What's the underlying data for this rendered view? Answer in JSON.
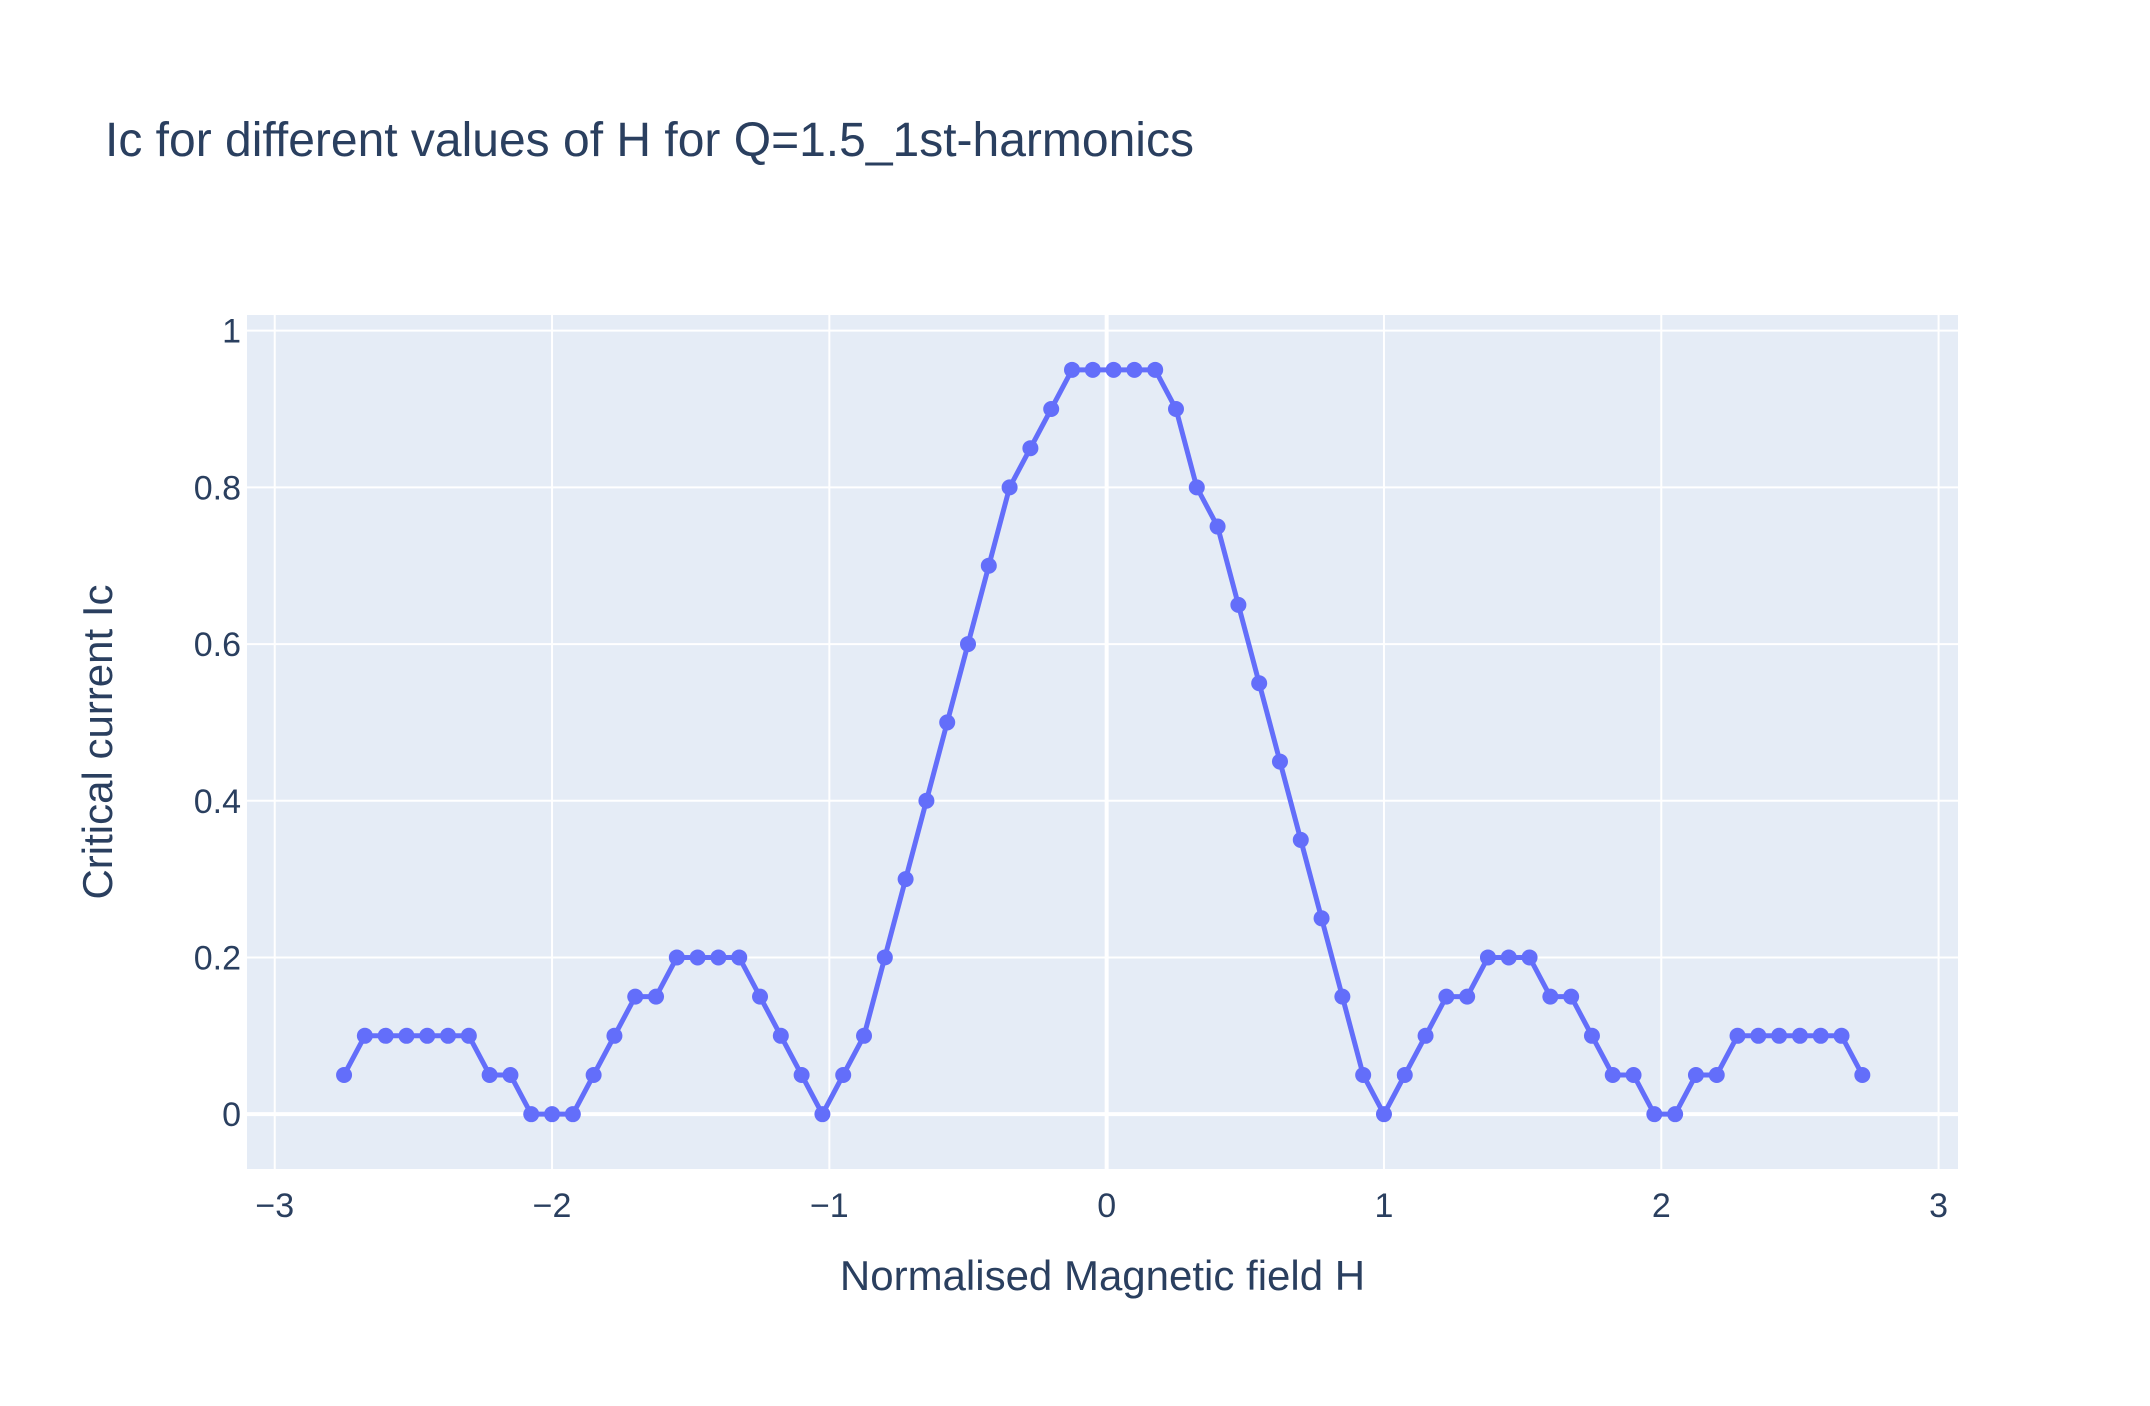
{
  "chart_data": {
    "type": "line",
    "title": "Ic for different values of H for Q=1.5_1st-harmonics",
    "xlabel": "Normalised Magnetic field H",
    "ylabel": "Critical current Ic",
    "xlim": [
      -3.1,
      3.07
    ],
    "ylim": [
      -0.07,
      1.02
    ],
    "x_ticks": [
      -3,
      -2,
      -1,
      0,
      1,
      2,
      3
    ],
    "x_tick_labels": [
      "−3",
      "−2",
      "−1",
      "0",
      "1",
      "2",
      "3"
    ],
    "y_ticks": [
      0,
      0.2,
      0.4,
      0.6,
      0.8,
      1
    ],
    "y_tick_labels": [
      "0",
      "0.2",
      "0.4",
      "0.6",
      "0.8",
      "1"
    ],
    "grid": true,
    "colors": {
      "line": "#636efa",
      "plot_background": "#e5ecf6",
      "grid": "#ffffff",
      "text": "#2a3f5f"
    },
    "series": [
      {
        "mode": "lines+markers",
        "x": [
          -2.75,
          -2.675,
          -2.6,
          -2.525,
          -2.45,
          -2.375,
          -2.3,
          -2.225,
          -2.15,
          -2.075,
          -2.0,
          -1.925,
          -1.85,
          -1.775,
          -1.7,
          -1.625,
          -1.55,
          -1.475,
          -1.4,
          -1.325,
          -1.25,
          -1.175,
          -1.1,
          -1.025,
          -0.95,
          -0.875,
          -0.8,
          -0.725,
          -0.65,
          -0.575,
          -0.5,
          -0.425,
          -0.35,
          -0.275,
          -0.2,
          -0.125,
          -0.05,
          0.025,
          0.1,
          0.175,
          0.25,
          0.325,
          0.4,
          0.475,
          0.55,
          0.625,
          0.7,
          0.775,
          0.85,
          0.925,
          1.0,
          1.075,
          1.15,
          1.225,
          1.3,
          1.375,
          1.45,
          1.525,
          1.6,
          1.675,
          1.75,
          1.825,
          1.9,
          1.975,
          2.05,
          2.125,
          2.2,
          2.275,
          2.35,
          2.425,
          2.5,
          2.575,
          2.65,
          2.725
        ],
        "y": [
          0.05,
          0.1,
          0.1,
          0.1,
          0.1,
          0.1,
          0.1,
          0.05,
          0.05,
          0.0,
          0.0,
          0.0,
          0.05,
          0.1,
          0.15,
          0.15,
          0.2,
          0.2,
          0.2,
          0.2,
          0.15,
          0.1,
          0.05,
          0.0,
          0.05,
          0.1,
          0.2,
          0.3,
          0.4,
          0.5,
          0.6,
          0.7,
          0.8,
          0.85,
          0.9,
          0.95,
          0.95,
          0.95,
          0.95,
          0.95,
          0.9,
          0.8,
          0.75,
          0.65,
          0.55,
          0.45,
          0.35,
          0.25,
          0.15,
          0.05,
          0.0,
          0.05,
          0.1,
          0.15,
          0.15,
          0.2,
          0.2,
          0.2,
          0.15,
          0.15,
          0.1,
          0.05,
          0.05,
          0.0,
          0.0,
          0.05,
          0.05,
          0.1,
          0.1,
          0.1,
          0.1,
          0.1,
          0.1,
          0.05
        ]
      }
    ]
  }
}
